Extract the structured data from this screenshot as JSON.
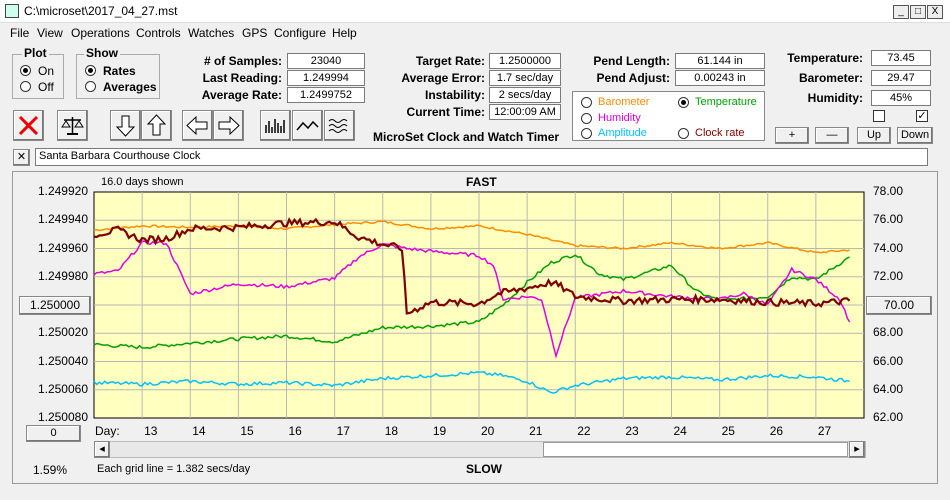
{
  "window": {
    "title": "C:\\microset\\2017_04_27.mst",
    "min": "_",
    "max": "□",
    "close": "X"
  },
  "menu": [
    "File",
    "View",
    "Operations",
    "Controls",
    "Watches",
    "GPS",
    "Configure",
    "Help"
  ],
  "plot_group": {
    "title": "Plot",
    "on": "On",
    "off": "Off",
    "selected": "On"
  },
  "show_group": {
    "title": "Show",
    "rates": "Rates",
    "averages": "Averages",
    "selected": "Rates"
  },
  "stats": {
    "samples_label": "# of Samples:",
    "samples": "23040",
    "last_label": "Last Reading:",
    "last": "1.249994",
    "avg_label": "Average Rate:",
    "avg": "1.2499752"
  },
  "rates": {
    "target_label": "Target Rate:",
    "target": "1.2500000",
    "error_label": "Average Error:",
    "error": "1.7 sec/day",
    "instab_label": "Instability:",
    "instab": "2 secs/day",
    "time_label": "Current Time:",
    "time": "12:00:09 AM"
  },
  "app_name": "MicroSet Clock and Watch Timer",
  "pend": {
    "length_label": "Pend Length:",
    "length": "61.144 in",
    "adjust_label": "Pend Adjust:",
    "adjust": "0.00243 in"
  },
  "overlay": {
    "barometer": "Barometer",
    "temperature": "Temperature",
    "humidity": "Humidity",
    "amplitude": "Amplitude",
    "clock_rate": "Clock rate",
    "selected": "Temperature",
    "colors": {
      "barometer": "#ff8c00",
      "temperature": "#00a000",
      "humidity": "#e000e0",
      "amplitude": "#00c0ff",
      "clock_rate": "#800000"
    }
  },
  "env": {
    "temp_label": "Temperature:",
    "temp": "73.45",
    "baro_label": "Barometer:",
    "baro": "29.47",
    "hum_label": "Humidity:",
    "hum": "45%"
  },
  "env_buttons": {
    "plus": "+",
    "minus": "—",
    "up": "Up",
    "down": "Down"
  },
  "clock_name": "Santa Barbara Courthouse Clock",
  "chart_header": {
    "days_shown": "16.0 days shown",
    "fast": "FAST",
    "slow": "SLOW",
    "grid_note": "Each grid line = 1.382 secs/day",
    "pct": "1.59%",
    "day_label": "Day:",
    "left_center_btn": "1.250000",
    "right_center_btn": "70.00",
    "zero_btn": "0"
  },
  "chart_data": {
    "type": "line",
    "x_ticks": [
      "13",
      "14",
      "15",
      "16",
      "17",
      "18",
      "19",
      "20",
      "21",
      "22",
      "23",
      "24",
      "25",
      "26",
      "27"
    ],
    "x_range": [
      12,
      28
    ],
    "y_left_ticks": [
      "1.249920",
      "1.249940",
      "1.249960",
      "1.249980",
      "1.250000",
      "1.250020",
      "1.250040",
      "1.250060",
      "1.250080"
    ],
    "y_left_range": [
      1.24992,
      1.25008
    ],
    "y_right_ticks": [
      "78.00",
      "76.00",
      "74.00",
      "72.00",
      "70.00",
      "68.00",
      "66.00",
      "64.00",
      "62.00"
    ],
    "y_right_range": [
      62,
      78
    ],
    "series": [
      {
        "key": "barometer",
        "color": "#ff8c00",
        "points": [
          [
            12,
            75.3
          ],
          [
            13,
            75.6
          ],
          [
            14,
            75.5
          ],
          [
            15,
            75.6
          ],
          [
            16,
            75.4
          ],
          [
            17,
            75.7
          ],
          [
            18,
            75.9
          ],
          [
            19,
            75.4
          ],
          [
            20,
            75.6
          ],
          [
            21,
            75.0
          ],
          [
            22,
            74.2
          ],
          [
            23,
            74.0
          ],
          [
            24,
            74.4
          ],
          [
            25,
            74.0
          ],
          [
            26,
            74.4
          ],
          [
            27,
            73.7
          ],
          [
            27.7,
            73.9
          ]
        ]
      },
      {
        "key": "temperature",
        "color": "#00a000",
        "points": [
          [
            12,
            67.2
          ],
          [
            13,
            67.0
          ],
          [
            14,
            67.3
          ],
          [
            15,
            67.6
          ],
          [
            16,
            67.8
          ],
          [
            17,
            67.4
          ],
          [
            18,
            68.4
          ],
          [
            19,
            68.5
          ],
          [
            20,
            68.8
          ],
          [
            20.5,
            70.0
          ],
          [
            21,
            71.6
          ],
          [
            21.5,
            73.0
          ],
          [
            22,
            73.6
          ],
          [
            22.5,
            72.2
          ],
          [
            23,
            71.8
          ],
          [
            24,
            72.8
          ],
          [
            24.5,
            71.0
          ],
          [
            25,
            70.3
          ],
          [
            26,
            70.6
          ],
          [
            26.5,
            72.0
          ],
          [
            27,
            71.8
          ],
          [
            27.7,
            73.4
          ]
        ]
      },
      {
        "key": "humidity",
        "color": "#e000e0",
        "points": [
          [
            12,
            72.2
          ],
          [
            12.5,
            72.4
          ],
          [
            13,
            74.4
          ],
          [
            13.5,
            74.4
          ],
          [
            14,
            70.8
          ],
          [
            15,
            71.5
          ],
          [
            16,
            71.3
          ],
          [
            17,
            71.9
          ],
          [
            17.5,
            73.4
          ],
          [
            18,
            74.3
          ],
          [
            18.5,
            74.0
          ],
          [
            19,
            73.8
          ],
          [
            20,
            73.5
          ],
          [
            20.3,
            72.8
          ],
          [
            20.5,
            70.4
          ],
          [
            21,
            70.6
          ],
          [
            21.3,
            70.4
          ],
          [
            21.6,
            66.5
          ],
          [
            22,
            70.5
          ],
          [
            23,
            71.0
          ],
          [
            24,
            70.6
          ],
          [
            25,
            70.4
          ],
          [
            25.5,
            70.8
          ],
          [
            26,
            70.0
          ],
          [
            26.5,
            72.5
          ],
          [
            27,
            71.8
          ],
          [
            27.5,
            70.4
          ],
          [
            27.7,
            68.8
          ]
        ]
      },
      {
        "key": "amplitude",
        "color": "#00c0ff",
        "points": [
          [
            12,
            64.5
          ],
          [
            13,
            64.4
          ],
          [
            14,
            64.6
          ],
          [
            15,
            64.4
          ],
          [
            16,
            64.5
          ],
          [
            17,
            64.3
          ],
          [
            18,
            64.8
          ],
          [
            19,
            65.0
          ],
          [
            20,
            65.2
          ],
          [
            20.5,
            65.0
          ],
          [
            21,
            64.6
          ],
          [
            21.5,
            63.8
          ],
          [
            22,
            64.3
          ],
          [
            23,
            64.8
          ],
          [
            24,
            64.9
          ],
          [
            25,
            64.7
          ],
          [
            26,
            65.0
          ],
          [
            27,
            64.9
          ],
          [
            27.7,
            64.6
          ]
        ]
      },
      {
        "key": "clock_rate",
        "color": "#800000",
        "points": [
          [
            12,
            75.0
          ],
          [
            12.5,
            75.3
          ],
          [
            13,
            74.6
          ],
          [
            13.5,
            74.7
          ],
          [
            14,
            75.4
          ],
          [
            15,
            75.5
          ],
          [
            16,
            75.8
          ],
          [
            17,
            75.9
          ],
          [
            17.5,
            74.8
          ],
          [
            18,
            74.3
          ],
          [
            18.4,
            74.0
          ],
          [
            18.5,
            69.4
          ],
          [
            19,
            70.2
          ],
          [
            20,
            70.1
          ],
          [
            20.4,
            70.8
          ],
          [
            21,
            71.2
          ],
          [
            21.5,
            71.6
          ],
          [
            21.7,
            71.3
          ],
          [
            22,
            70.6
          ],
          [
            23,
            70.3
          ],
          [
            24,
            70.4
          ],
          [
            25,
            70.4
          ],
          [
            26,
            70.2
          ],
          [
            27,
            70.1
          ],
          [
            27.7,
            70.3
          ]
        ]
      }
    ]
  }
}
